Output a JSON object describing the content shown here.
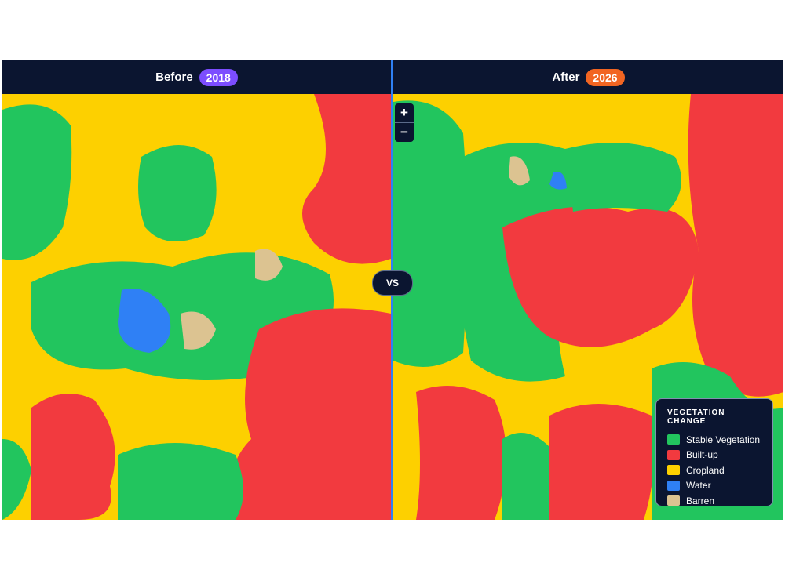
{
  "header": {
    "before": {
      "label": "Before",
      "year": "2018"
    },
    "after": {
      "label": "After",
      "year": "2026"
    },
    "vs": "VS"
  },
  "zoom": {
    "in": "+",
    "out": "−"
  },
  "legend": {
    "title": "VEGETATION CHANGE",
    "items": [
      {
        "label": "Stable Vegetation",
        "color": "#22c55e"
      },
      {
        "label": "Built-up",
        "color": "#f23a3f"
      },
      {
        "label": "Cropland",
        "color": "#fdd000"
      },
      {
        "label": "Water",
        "color": "#2f80f5"
      },
      {
        "label": "Barren",
        "color": "#dcc391"
      }
    ]
  }
}
